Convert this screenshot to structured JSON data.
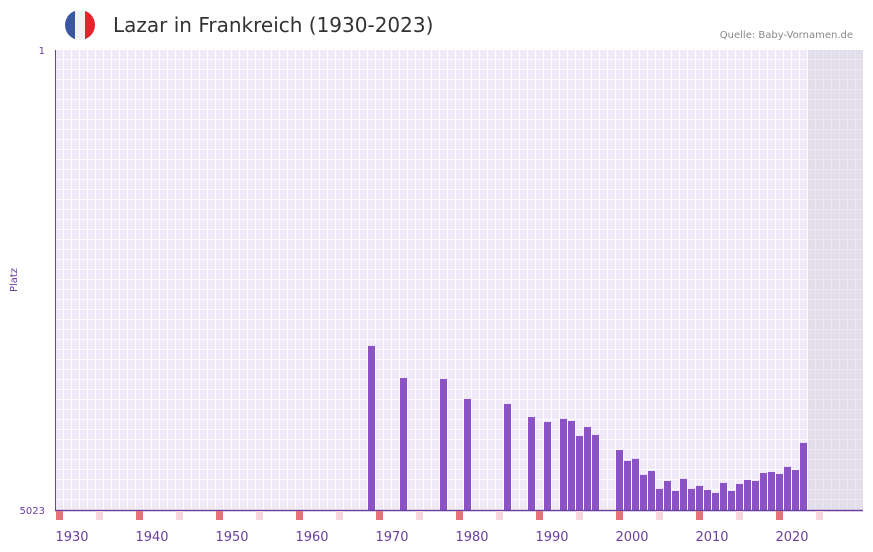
{
  "header": {
    "title": "Lazar in Frankreich (1930-2023)",
    "source": "Quelle: Baby-Vornamen.de",
    "flag_icon": "france-flag-icon"
  },
  "colors": {
    "bar": "#8b52c6",
    "axis": "#6a3fa0",
    "decade_marker": "#e5737b",
    "half_decade_marker": "#f5d6de",
    "grid_bg": "#efe9f8",
    "future_bg": "#e3dfec"
  },
  "chart_data": {
    "type": "bar",
    "title": "Lazar in Frankreich (1930-2023)",
    "xlabel": "",
    "ylabel": "Platz",
    "xlim": [
      1930,
      2029
    ],
    "ylim": [
      5023,
      1
    ],
    "y_inverted": true,
    "y_tick_labels": [
      "1",
      "5023"
    ],
    "x_tick_labels": [
      "1930",
      "1940",
      "1950",
      "1960",
      "1970",
      "1980",
      "1990",
      "2000",
      "2010",
      "2020"
    ],
    "grid": true,
    "points": [
      {
        "year": 1969,
        "rank": 3232
      },
      {
        "year": 1973,
        "rank": 3582
      },
      {
        "year": 1978,
        "rank": 3593
      },
      {
        "year": 1981,
        "rank": 3811
      },
      {
        "year": 1986,
        "rank": 3866
      },
      {
        "year": 1989,
        "rank": 4008
      },
      {
        "year": 1991,
        "rank": 4062
      },
      {
        "year": 1993,
        "rank": 4029
      },
      {
        "year": 1994,
        "rank": 4051
      },
      {
        "year": 1995,
        "rank": 4215
      },
      {
        "year": 1996,
        "rank": 4117
      },
      {
        "year": 1997,
        "rank": 4204
      },
      {
        "year": 2000,
        "rank": 4368
      },
      {
        "year": 2001,
        "rank": 4487
      },
      {
        "year": 2002,
        "rank": 4465
      },
      {
        "year": 2003,
        "rank": 4640
      },
      {
        "year": 2004,
        "rank": 4597
      },
      {
        "year": 2005,
        "rank": 4793
      },
      {
        "year": 2006,
        "rank": 4706
      },
      {
        "year": 2007,
        "rank": 4815
      },
      {
        "year": 2008,
        "rank": 4684
      },
      {
        "year": 2009,
        "rank": 4793
      },
      {
        "year": 2010,
        "rank": 4760
      },
      {
        "year": 2011,
        "rank": 4804
      },
      {
        "year": 2012,
        "rank": 4837
      },
      {
        "year": 2013,
        "rank": 4728
      },
      {
        "year": 2014,
        "rank": 4815
      },
      {
        "year": 2015,
        "rank": 4739
      },
      {
        "year": 2016,
        "rank": 4695
      },
      {
        "year": 2017,
        "rank": 4706
      },
      {
        "year": 2018,
        "rank": 4619
      },
      {
        "year": 2019,
        "rank": 4608
      },
      {
        "year": 2020,
        "rank": 4630
      },
      {
        "year": 2021,
        "rank": 4553
      },
      {
        "year": 2022,
        "rank": 4586
      },
      {
        "year": 2023,
        "rank": 4291
      }
    ]
  }
}
